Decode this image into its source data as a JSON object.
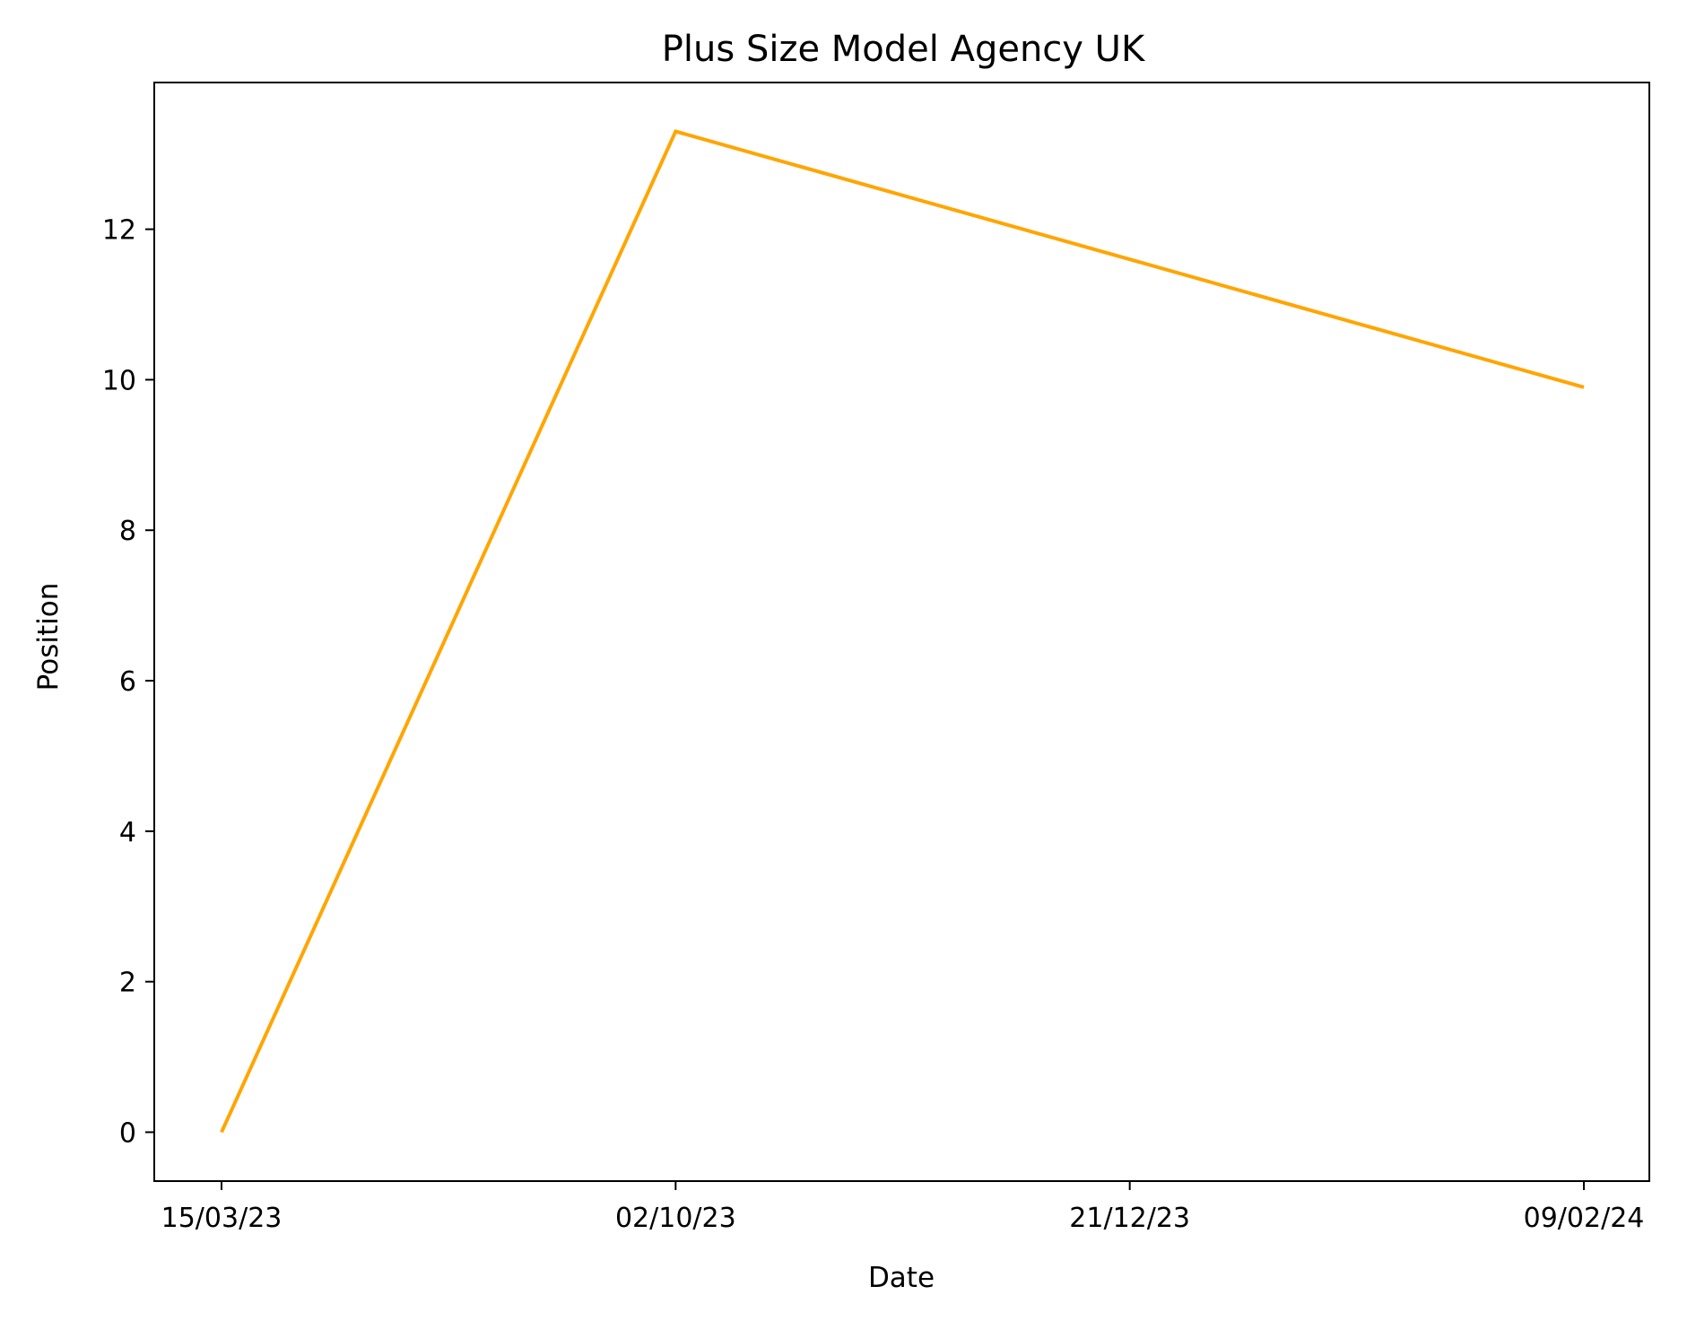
{
  "chart_data": {
    "type": "line",
    "title": "Plus Size Model Agency UK",
    "xlabel": "Date",
    "ylabel": "Position",
    "categories": [
      "15/03/23",
      "02/10/23",
      "21/12/23",
      "09/02/24"
    ],
    "series": [
      {
        "values": [
          0,
          13.3,
          11.6,
          9.9
        ],
        "color": "#FFA500"
      }
    ],
    "ylim": [
      -0.65,
      13.95
    ],
    "yticks": [
      0,
      2,
      4,
      6,
      8,
      10,
      12
    ],
    "grid": false,
    "legend": "none"
  }
}
